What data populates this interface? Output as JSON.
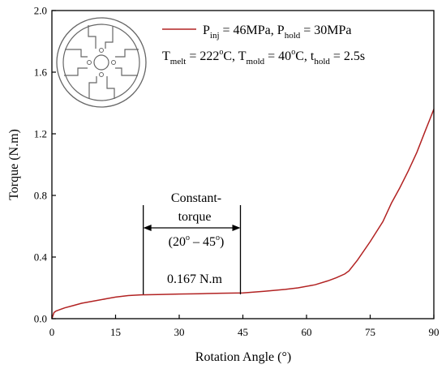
{
  "chart_data": {
    "type": "line",
    "xlabel": "Rotation Angle (°)",
    "ylabel": "Torque (N.m)",
    "xlim": [
      0,
      90
    ],
    "ylim": [
      0,
      2.0
    ],
    "xticks": [
      0,
      15,
      30,
      45,
      60,
      75,
      90
    ],
    "yticks": [
      0.0,
      0.4,
      0.8,
      1.2,
      1.6,
      2.0
    ],
    "xtick_labels": [
      "0",
      "15",
      "30",
      "45",
      "60",
      "75",
      "90"
    ],
    "ytick_labels": [
      "0.0",
      "0.4",
      "0.8",
      "1.2",
      "1.6",
      "2.0"
    ],
    "grid": false,
    "legend_position": "top-right",
    "series": [
      {
        "name": "P_inj = 46MPa, P_hold = 30MPa",
        "color": "#b22222",
        "x": [
          0,
          0.5,
          1,
          2,
          3,
          5,
          7,
          10,
          13,
          15,
          18,
          21,
          25,
          30,
          35,
          40,
          45,
          50,
          55,
          58,
          62,
          65,
          67,
          69,
          70,
          72,
          75,
          78,
          80,
          82,
          84,
          86,
          88,
          89,
          90
        ],
        "y": [
          0.0,
          0.04,
          0.05,
          0.06,
          0.07,
          0.085,
          0.1,
          0.115,
          0.13,
          0.14,
          0.15,
          0.155,
          0.157,
          0.16,
          0.162,
          0.165,
          0.167,
          0.178,
          0.19,
          0.2,
          0.22,
          0.245,
          0.265,
          0.29,
          0.31,
          0.38,
          0.5,
          0.63,
          0.75,
          0.85,
          0.96,
          1.08,
          1.22,
          1.29,
          1.36
        ]
      }
    ],
    "legend": {
      "line1": {
        "p1": "P",
        "s1": "inj",
        "t1": " = 46MPa, P",
        "s2": "hold",
        "t2": " = 30MPa"
      },
      "line2": {
        "p1": "T",
        "s1": "melt",
        "t1": " = 222",
        "sup1": "o",
        "t2": "C, T",
        "s2": "mold",
        "t3": " = 40",
        "sup2": "o",
        "t4": "C, t",
        "s3": "hold",
        "t5": " = 2.5s"
      }
    },
    "annotations": {
      "region_label_line1": "Constant-",
      "region_label_line2": "torque",
      "range_open": "(20",
      "range_sup1": "o",
      "range_mid": " – 45",
      "range_sup2": "o",
      "range_close": ")",
      "value_label": "0.167 N.m",
      "range_start": 20,
      "range_end": 45
    }
  }
}
